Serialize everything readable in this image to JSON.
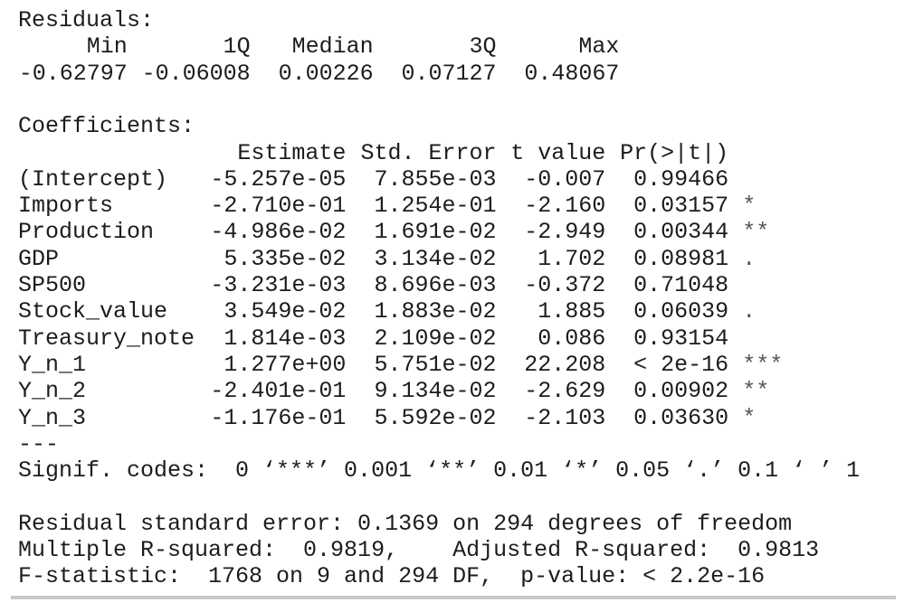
{
  "residuals": {
    "title": "Residuals:",
    "headers": [
      "Min",
      "1Q",
      "Median",
      "3Q",
      "Max"
    ],
    "values": [
      "-0.62797",
      "-0.06008",
      "0.00226",
      "0.07127",
      "0.48067"
    ]
  },
  "coefficients": {
    "title": "Coefficients:",
    "columns": [
      "Estimate",
      "Std. Error",
      "t value",
      "Pr(>|t|)"
    ],
    "rows": [
      [
        "(Intercept)",
        "-5.257e-05",
        "7.855e-03",
        "-0.007",
        "0.99466",
        ""
      ],
      [
        "Imports",
        "-2.710e-01",
        "1.254e-01",
        "-2.160",
        "0.03157",
        "*"
      ],
      [
        "Production",
        "-4.986e-02",
        "1.691e-02",
        "-2.949",
        "0.00344",
        "**"
      ],
      [
        "GDP",
        "5.335e-02",
        "3.134e-02",
        "1.702",
        "0.08981",
        "."
      ],
      [
        "SP500",
        "-3.231e-03",
        "8.696e-03",
        "-0.372",
        "0.71048",
        ""
      ],
      [
        "Stock_value",
        "3.549e-02",
        "1.883e-02",
        "1.885",
        "0.06039",
        "."
      ],
      [
        "Treasury_note",
        "1.814e-03",
        "2.109e-02",
        "0.086",
        "0.93154",
        ""
      ],
      [
        "Y_n_1",
        "1.277e+00",
        "5.751e-02",
        "22.208",
        "< 2e-16",
        "***"
      ],
      [
        "Y_n_2",
        "-2.401e-01",
        "9.134e-02",
        "-2.629",
        "0.00902",
        "**"
      ],
      [
        "Y_n_3",
        "-1.176e-01",
        "5.592e-02",
        "-2.103",
        "0.03630",
        "*"
      ]
    ]
  },
  "separator": "---",
  "signif_codes": "Signif. codes:  0 ‘***’ 0.001 ‘**’ 0.01 ‘*’ 0.05 ‘.’ 0.1 ‘ ’ 1",
  "footer": [
    "Residual standard error: 0.1369 on 294 degrees of freedom",
    "Multiple R-squared:  0.9819,    Adjusted R-squared:  0.9813",
    "F-statistic:  1768 on 9 and 294 DF,  p-value: < 2.2e-16"
  ]
}
